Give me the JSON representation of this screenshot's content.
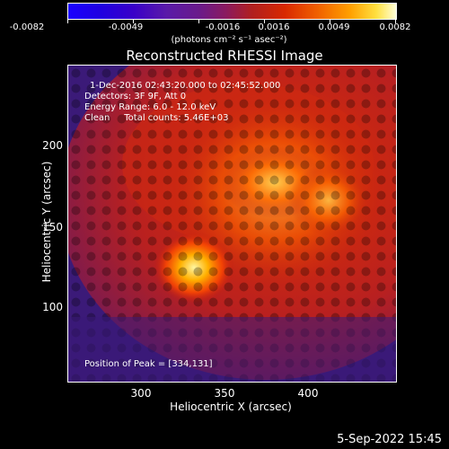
{
  "colorbar": {
    "ticks": [
      "-0.0082",
      "-0.0049",
      "-0.0016",
      "0.0016",
      "0.0049",
      "0.0082"
    ],
    "units": "(photons cm⁻² s⁻¹ asec⁻²)"
  },
  "title": "Reconstructed RHESSI Image",
  "info": {
    "time_range": "1-Dec-2016 02:43:20.000 to 02:45:52.000",
    "detectors": "Detectors: 3F 9F, Att 0",
    "energy": "Energy Range: 6.0 - 12.0 keV",
    "clean": "Clean     Total counts: 5.46E+03",
    "peak": "Position of Peak = [334,131]"
  },
  "axes": {
    "xlabel": "Heliocentric X (arcsec)",
    "ylabel": "Heliocentric Y (arcsec)",
    "xticks": [
      "300",
      "350",
      "400"
    ],
    "yticks": [
      "100",
      "150",
      "200"
    ]
  },
  "timestamp": "5-Sep-2022 15:45",
  "colors": {
    "background": "#000000",
    "low": "#1a00ff",
    "mid": "#d82800",
    "high": "#ffffd8"
  }
}
